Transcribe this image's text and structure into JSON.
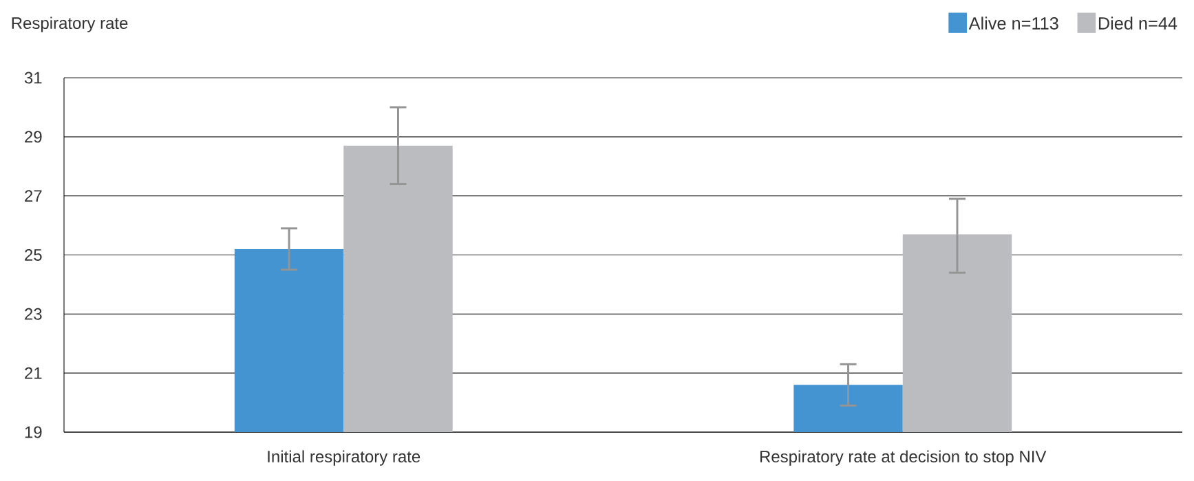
{
  "chart_data": {
    "type": "bar",
    "ylabel": "Respiratory rate",
    "categories": [
      "Initial respiratory rate",
      "Respiratory rate at decision to stop NIV"
    ],
    "series": [
      {
        "name": "Alive n=113",
        "color": "#4394d1",
        "values": [
          25.2,
          20.6
        ],
        "errors": [
          [
            24.5,
            25.9
          ],
          [
            19.9,
            21.3
          ]
        ]
      },
      {
        "name": "Died n=44",
        "color": "#bbbcc0",
        "values": [
          28.7,
          25.7
        ],
        "errors": [
          [
            27.4,
            30.0
          ],
          [
            24.4,
            26.9
          ]
        ]
      }
    ],
    "ylim": [
      19,
      31
    ],
    "yticks": [
      19,
      21,
      23,
      25,
      27,
      29,
      31
    ],
    "grid": "y",
    "legend": "top right"
  }
}
